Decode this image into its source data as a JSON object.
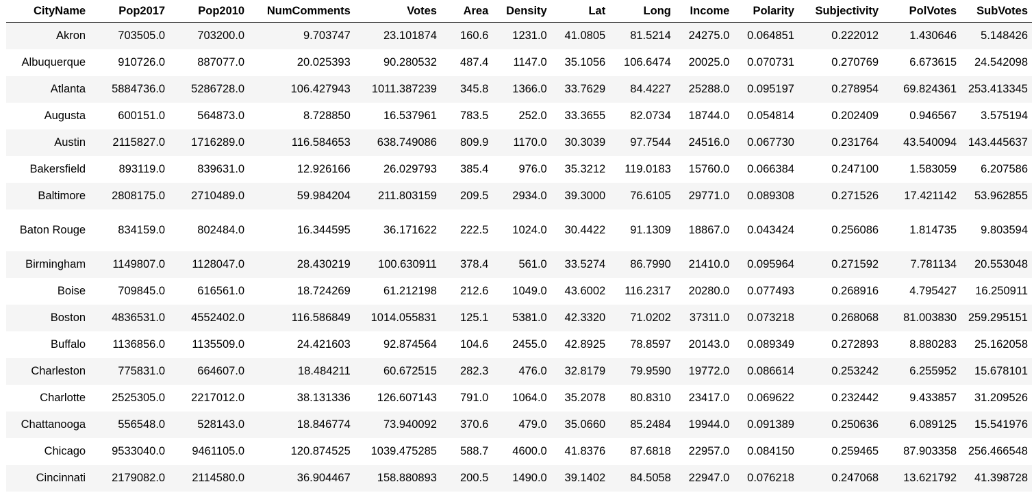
{
  "table": {
    "columns": [
      "CityName",
      "Pop2017",
      "Pop2010",
      "NumComments",
      "Votes",
      "Area",
      "Density",
      "Lat",
      "Long",
      "Income",
      "Polarity",
      "Subjectivity",
      "PolVotes",
      "SubVotes"
    ],
    "rows": [
      [
        "Akron",
        "703505.0",
        "703200.0",
        "9.703747",
        "23.101874",
        "160.6",
        "1231.0",
        "41.0805",
        "81.5214",
        "24275.0",
        "0.064851",
        "0.222012",
        "1.430646",
        "5.148426"
      ],
      [
        "Albuquerque",
        "910726.0",
        "887077.0",
        "20.025393",
        "90.280532",
        "487.4",
        "1147.0",
        "35.1056",
        "106.6474",
        "20025.0",
        "0.070731",
        "0.270769",
        "6.673615",
        "24.542098"
      ],
      [
        "Atlanta",
        "5884736.0",
        "5286728.0",
        "106.427943",
        "1011.387239",
        "345.8",
        "1366.0",
        "33.7629",
        "84.4227",
        "25288.0",
        "0.095197",
        "0.278954",
        "69.824361",
        "253.413345"
      ],
      [
        "Augusta",
        "600151.0",
        "564873.0",
        "8.728850",
        "16.537961",
        "783.5",
        "252.0",
        "33.3655",
        "82.0734",
        "18744.0",
        "0.054814",
        "0.202409",
        "0.946567",
        "3.575194"
      ],
      [
        "Austin",
        "2115827.0",
        "1716289.0",
        "116.584653",
        "638.749086",
        "809.9",
        "1170.0",
        "30.3039",
        "97.7544",
        "24516.0",
        "0.067730",
        "0.231764",
        "43.540094",
        "143.445637"
      ],
      [
        "Bakersfield",
        "893119.0",
        "839631.0",
        "12.926166",
        "26.029793",
        "385.4",
        "976.0",
        "35.3212",
        "119.0183",
        "15760.0",
        "0.066384",
        "0.247100",
        "1.583059",
        "6.207586"
      ],
      [
        "Baltimore",
        "2808175.0",
        "2710489.0",
        "59.984204",
        "211.803159",
        "209.5",
        "2934.0",
        "39.3000",
        "76.6105",
        "29771.0",
        "0.089308",
        "0.271526",
        "17.421142",
        "53.962855"
      ],
      [
        "Baton Rouge",
        "834159.0",
        "802484.0",
        "16.344595",
        "36.171622",
        "222.5",
        "1024.0",
        "30.4422",
        "91.1309",
        "18867.0",
        "0.043424",
        "0.256086",
        "1.814735",
        "9.803594"
      ],
      [
        "Birmingham",
        "1149807.0",
        "1128047.0",
        "28.430219",
        "100.630911",
        "378.4",
        "561.0",
        "33.5274",
        "86.7990",
        "21410.0",
        "0.095964",
        "0.271592",
        "7.781134",
        "20.553048"
      ],
      [
        "Boise",
        "709845.0",
        "616561.0",
        "18.724269",
        "61.212198",
        "212.6",
        "1049.0",
        "43.6002",
        "116.2317",
        "20280.0",
        "0.077493",
        "0.268916",
        "4.795427",
        "16.250911"
      ],
      [
        "Boston",
        "4836531.0",
        "4552402.0",
        "116.586849",
        "1014.055831",
        "125.1",
        "5381.0",
        "42.3320",
        "71.0202",
        "37311.0",
        "0.073218",
        "0.268068",
        "81.003830",
        "259.295151"
      ],
      [
        "Buffalo",
        "1136856.0",
        "1135509.0",
        "24.421603",
        "92.874564",
        "104.6",
        "2455.0",
        "42.8925",
        "78.8597",
        "20143.0",
        "0.089349",
        "0.272893",
        "8.880283",
        "25.162058"
      ],
      [
        "Charleston",
        "775831.0",
        "664607.0",
        "18.484211",
        "60.672515",
        "282.3",
        "476.0",
        "32.8179",
        "79.9590",
        "19772.0",
        "0.086614",
        "0.253242",
        "6.255952",
        "15.678101"
      ],
      [
        "Charlotte",
        "2525305.0",
        "2217012.0",
        "38.131336",
        "126.607143",
        "791.0",
        "1064.0",
        "35.2078",
        "80.8310",
        "23417.0",
        "0.069622",
        "0.232442",
        "9.433857",
        "31.209526"
      ],
      [
        "Chattanooga",
        "556548.0",
        "528143.0",
        "18.846774",
        "73.940092",
        "370.6",
        "479.0",
        "35.0660",
        "85.2484",
        "19944.0",
        "0.091389",
        "0.250636",
        "6.089125",
        "15.541976"
      ],
      [
        "Chicago",
        "9533040.0",
        "9461105.0",
        "120.874525",
        "1039.475285",
        "588.7",
        "4600.0",
        "41.8376",
        "87.6818",
        "22957.0",
        "0.084150",
        "0.259465",
        "87.903358",
        "256.466548"
      ],
      [
        "Cincinnati",
        "2179082.0",
        "2114580.0",
        "36.904467",
        "158.880893",
        "200.5",
        "1490.0",
        "39.1402",
        "84.5058",
        "22947.0",
        "0.076218",
        "0.247068",
        "13.621792",
        "41.398728"
      ]
    ]
  }
}
